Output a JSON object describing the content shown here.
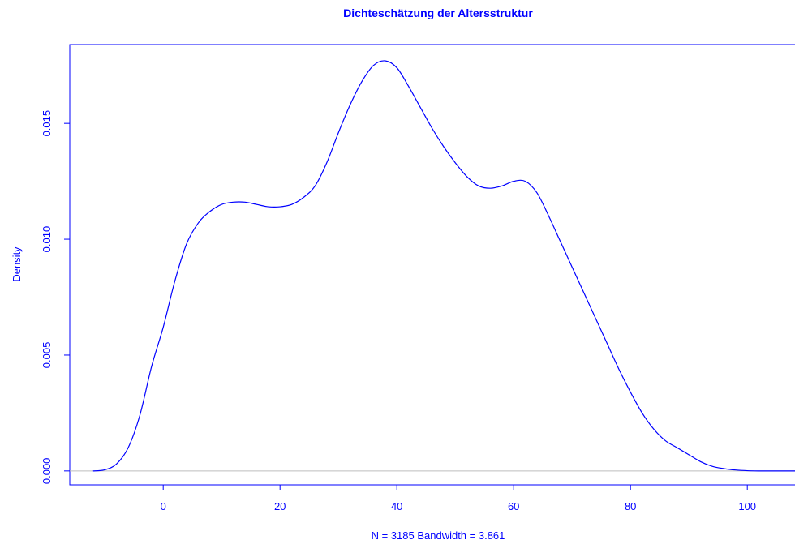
{
  "chart_data": {
    "type": "line",
    "title": "Dichteschätzung der Altersstruktur",
    "xlabel": "N = 3185   Bandwidth = 3.861",
    "ylabel": "Density",
    "xlim": [
      -16,
      109
    ],
    "ylim": [
      -0.0006,
      0.0184
    ],
    "x_ticks": [
      0,
      20,
      40,
      60,
      80,
      100
    ],
    "x_tick_labels": [
      "0",
      "20",
      "40",
      "60",
      "80",
      "100"
    ],
    "y_ticks": [
      0,
      0.005,
      0.01,
      0.015
    ],
    "y_tick_labels": [
      "0.000",
      "0.005",
      "0.010",
      "0.015"
    ],
    "grid": false,
    "baseline": 0,
    "colors": {
      "main": "#0000ff",
      "baseline": "#bebebe"
    },
    "series": [
      {
        "x": [
          -12,
          -10,
          -8,
          -6,
          -4,
          -2,
          0,
          2,
          4,
          6,
          8,
          10,
          12,
          14,
          16,
          18,
          20,
          22,
          24,
          26,
          28,
          30,
          32,
          34,
          36,
          38,
          40,
          42,
          44,
          46,
          48,
          50,
          52,
          54,
          56,
          58,
          60,
          62,
          64,
          66,
          68,
          70,
          72,
          74,
          76,
          78,
          80,
          82,
          84,
          86,
          88,
          90,
          92,
          94,
          96,
          98,
          100,
          102,
          104,
          106,
          108,
          110
        ],
        "y": [
          0.0,
          5e-05,
          0.0003,
          0.001,
          0.0024,
          0.0045,
          0.0062,
          0.0082,
          0.0098,
          0.0107,
          0.0112,
          0.0115,
          0.0116,
          0.0116,
          0.0115,
          0.0114,
          0.0114,
          0.0115,
          0.0118,
          0.0123,
          0.0133,
          0.0146,
          0.0158,
          0.0168,
          0.0175,
          0.0177,
          0.0174,
          0.0166,
          0.0157,
          0.0148,
          0.014,
          0.0133,
          0.0127,
          0.0123,
          0.0122,
          0.0123,
          0.0125,
          0.0125,
          0.012,
          0.011,
          0.0099,
          0.0088,
          0.0077,
          0.0066,
          0.0055,
          0.0044,
          0.0034,
          0.0025,
          0.0018,
          0.0013,
          0.001,
          0.0007,
          0.0004,
          0.0002,
          0.0001,
          4e-05,
          1e-05,
          0.0,
          0.0,
          0.0,
          0.0,
          0.0
        ]
      }
    ]
  }
}
